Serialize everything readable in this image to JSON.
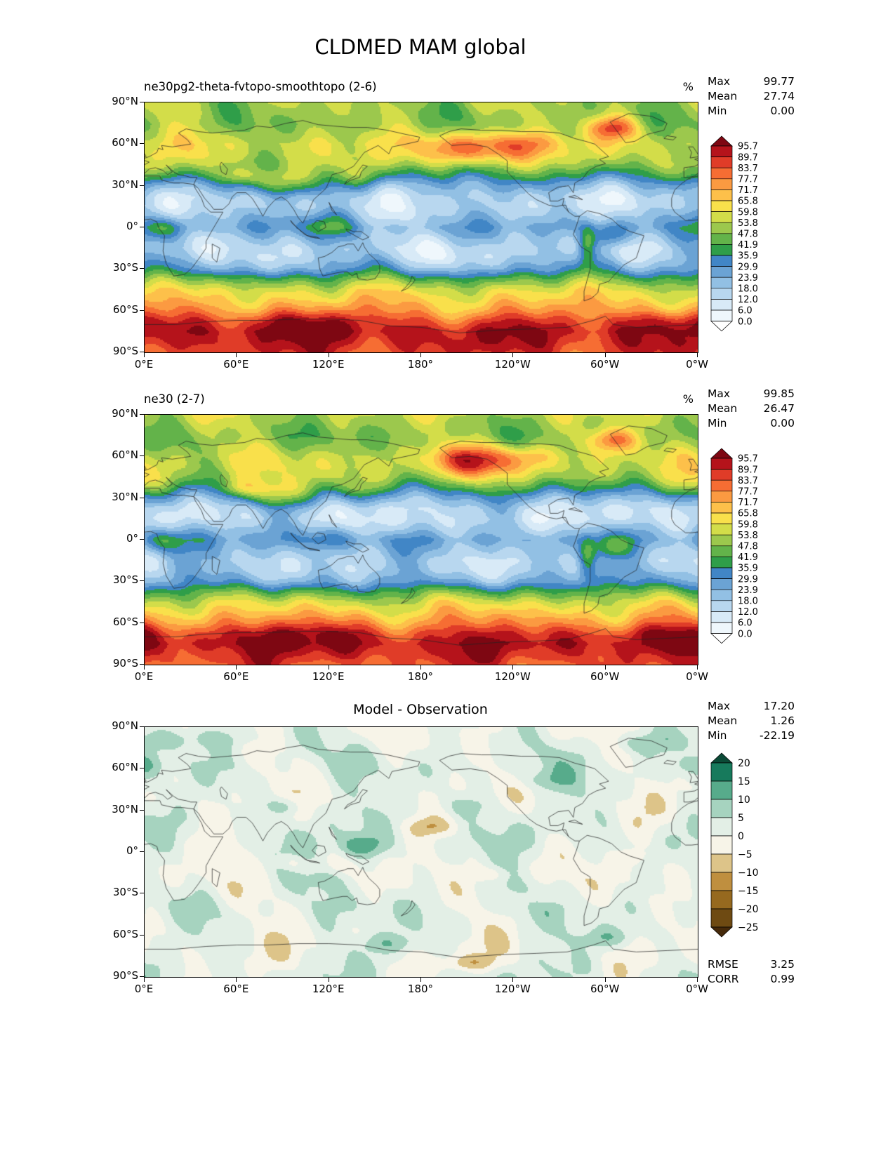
{
  "title": "CLDMED MAM global",
  "axes": {
    "lat_labels": [
      "90°N",
      "60°N",
      "30°N",
      "0°",
      "30°S",
      "60°S",
      "90°S"
    ],
    "lon_labels": [
      "0°E",
      "60°E",
      "120°E",
      "180°",
      "120°W",
      "60°W",
      "0°W"
    ]
  },
  "panels": [
    {
      "title": "ne30pg2-theta-fvtopo-smoothtopo (2-6)",
      "units": "%",
      "stats": [
        {
          "label": "Max",
          "value": "99.77"
        },
        {
          "label": "Mean",
          "value": "27.74"
        },
        {
          "label": "Min",
          "value": "0.00"
        }
      ]
    },
    {
      "title": "ne30 (2-7)",
      "units": "%",
      "stats": [
        {
          "label": "Max",
          "value": "99.85"
        },
        {
          "label": "Mean",
          "value": "26.47"
        },
        {
          "label": "Min",
          "value": "0.00"
        }
      ]
    },
    {
      "title": "Model - Observation",
      "units": "",
      "stats": [
        {
          "label": "Max",
          "value": "17.20"
        },
        {
          "label": "Mean",
          "value": "1.26"
        },
        {
          "label": "Min",
          "value": "-22.19"
        }
      ],
      "extra_stats": [
        {
          "label": "RMSE",
          "value": "3.25"
        },
        {
          "label": "CORR",
          "value": "0.99"
        }
      ]
    }
  ],
  "chart_data": [
    {
      "type": "heatmap",
      "subtype": "filled-contour-global-map",
      "title": "ne30pg2-theta-fvtopo-smoothtopo (2-6)",
      "variable": "CLDMED",
      "season": "MAM",
      "region": "global",
      "units": "%",
      "projection": "equirectangular",
      "lon_ticks": [
        "0°E",
        "60°E",
        "120°E",
        "180°",
        "120°W",
        "60°W",
        "0°W"
      ],
      "lat_ticks": [
        "90°N",
        "60°N",
        "30°N",
        "0°",
        "30°S",
        "60°S",
        "90°S"
      ],
      "levels": [
        0.0,
        6.0,
        12.0,
        18.0,
        23.9,
        29.9,
        35.9,
        41.9,
        47.8,
        53.8,
        59.8,
        65.8,
        71.7,
        77.7,
        83.7,
        89.7,
        95.7
      ],
      "colorbar_labels": [
        "95.7",
        "89.7",
        "83.7",
        "77.7",
        "71.7",
        "65.8",
        "59.8",
        "53.8",
        "47.8",
        "41.9",
        "35.9",
        "29.9",
        "23.9",
        "18.0",
        "12.0",
        "6.0",
        "0.0"
      ],
      "colors_ascending": [
        "#ffffff",
        "#eff7fc",
        "#d8eaf7",
        "#b8d7ef",
        "#92c0e4",
        "#6ba3d4",
        "#4186c6",
        "#2f9e49",
        "#63b34a",
        "#9cc84d",
        "#d3dd49",
        "#f9e04b",
        "#fdc04a",
        "#fb9a41",
        "#f66d33",
        "#e03c28",
        "#b5131b",
        "#7e0712"
      ],
      "stats": {
        "max": 99.77,
        "mean": 27.74,
        "min": 0.0
      },
      "legend_position": "right"
    },
    {
      "type": "heatmap",
      "subtype": "filled-contour-global-map",
      "title": "ne30 (2-7)",
      "variable": "CLDMED",
      "season": "MAM",
      "region": "global",
      "units": "%",
      "projection": "equirectangular",
      "lon_ticks": [
        "0°E",
        "60°E",
        "120°E",
        "180°",
        "120°W",
        "60°W",
        "0°W"
      ],
      "lat_ticks": [
        "90°N",
        "60°N",
        "30°N",
        "0°",
        "30°S",
        "60°S",
        "90°S"
      ],
      "levels": [
        0.0,
        6.0,
        12.0,
        18.0,
        23.9,
        29.9,
        35.9,
        41.9,
        47.8,
        53.8,
        59.8,
        65.8,
        71.7,
        77.7,
        83.7,
        89.7,
        95.7
      ],
      "colorbar_labels": [
        "95.7",
        "89.7",
        "83.7",
        "77.7",
        "71.7",
        "65.8",
        "59.8",
        "53.8",
        "47.8",
        "41.9",
        "35.9",
        "29.9",
        "23.9",
        "18.0",
        "12.0",
        "6.0",
        "0.0"
      ],
      "colors_ascending": [
        "#ffffff",
        "#eff7fc",
        "#d8eaf7",
        "#b8d7ef",
        "#92c0e4",
        "#6ba3d4",
        "#4186c6",
        "#2f9e49",
        "#63b34a",
        "#9cc84d",
        "#d3dd49",
        "#f9e04b",
        "#fdc04a",
        "#fb9a41",
        "#f66d33",
        "#e03c28",
        "#b5131b",
        "#7e0712"
      ],
      "stats": {
        "max": 99.85,
        "mean": 26.47,
        "min": 0.0
      },
      "legend_position": "right"
    },
    {
      "type": "heatmap",
      "subtype": "filled-contour-global-map",
      "title": "Model - Observation",
      "variable": "CLDMED difference",
      "season": "MAM",
      "region": "global",
      "units": "%",
      "projection": "equirectangular",
      "lon_ticks": [
        "0°E",
        "60°E",
        "120°E",
        "180°",
        "120°W",
        "60°W",
        "0°W"
      ],
      "lat_ticks": [
        "90°N",
        "60°N",
        "30°N",
        "0°",
        "30°S",
        "60°S",
        "90°S"
      ],
      "levels": [
        -25,
        -20,
        -15,
        -10,
        -5,
        0,
        5,
        10,
        15,
        20
      ],
      "colorbar_labels": [
        "20",
        "15",
        "10",
        "5",
        "0",
        "−5",
        "−10",
        "−15",
        "−20",
        "−25"
      ],
      "colors_ascending": [
        "#45290a",
        "#6e4a12",
        "#96691f",
        "#bf8f3f",
        "#ddc489",
        "#f7f4e8",
        "#e3efe6",
        "#a6d3bf",
        "#57ab8b",
        "#177a5c",
        "#0b4a36"
      ],
      "stats": {
        "max": 17.2,
        "mean": 1.26,
        "min": -22.19,
        "rmse": 3.25,
        "corr": 0.99
      },
      "legend_position": "right"
    }
  ]
}
